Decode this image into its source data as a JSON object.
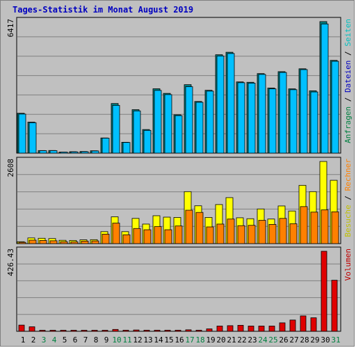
{
  "title": "Tages-Statistik im Monat August 2019",
  "chart_data": {
    "type": "bar",
    "title": "Tages-Statistik im Monat August 2019",
    "categories": [
      "1",
      "2",
      "3",
      "4",
      "5",
      "6",
      "7",
      "8",
      "9",
      "10",
      "11",
      "12",
      "13",
      "14",
      "15",
      "16",
      "17",
      "18",
      "19",
      "20",
      "21",
      "22",
      "23",
      "24",
      "25",
      "26",
      "27",
      "28",
      "29",
      "30",
      "31"
    ],
    "weekend_days": [
      "3",
      "4",
      "10",
      "11",
      "17",
      "18",
      "24",
      "25",
      "31"
    ],
    "panels": [
      {
        "name": "top",
        "ymax": 6417,
        "ymax_label": "6417",
        "right_label": [
          {
            "text": "Anfragen",
            "color": "#008040"
          },
          {
            "text": " / ",
            "color": "#000000"
          },
          {
            "text": "Dateien",
            "color": "#0000c0"
          },
          {
            "text": " / ",
            "color": "#000000"
          },
          {
            "text": "Seiten",
            "color": "#00c0c0"
          }
        ],
        "series": [
          {
            "name": "Anfragen",
            "color": "#008080",
            "values": [
              1945,
              1515,
              125,
              128,
              45,
              70,
              80,
              115,
              740,
              2420,
              530,
              2120,
              1150,
              3140,
              2915,
              1870,
              3340,
              2520,
              3065,
              4800,
              4920,
              3475,
              3455,
              3880,
              3175,
              3975,
              3135,
              4115,
              3040,
              6417,
              4525
            ]
          },
          {
            "name": "Dateien",
            "color": "#00c0ff",
            "values": [
              1905,
              1485,
              118,
              120,
              40,
              60,
              70,
              105,
              730,
              2330,
              520,
              2060,
              1110,
              3060,
              2855,
              1830,
              3240,
              2480,
              3025,
              4740,
              4860,
              3435,
              3415,
              3840,
              3135,
              3935,
              3095,
              4075,
              2985,
              6300,
              4480
            ]
          }
        ]
      },
      {
        "name": "middle",
        "ymax": 2608,
        "ymax_label": "2608",
        "right_label": [
          {
            "text": "Besuche",
            "color": "#c0c000"
          },
          {
            "text": " / ",
            "color": "#000000"
          },
          {
            "text": "Rechner",
            "color": "#ff8000"
          }
        ],
        "series": [
          {
            "name": "Besuche",
            "color": "#ffff00",
            "values": [
              60,
              180,
              170,
              160,
              105,
              100,
              120,
              125,
              380,
              850,
              380,
              800,
              620,
              885,
              840,
              830,
              1650,
              1200,
              830,
              1240,
              1460,
              820,
              790,
              1100,
              780,
              1195,
              1035,
              1850,
              1650,
              2608,
              2010
            ]
          },
          {
            "name": "Rechner",
            "color": "#ff8000",
            "values": [
              40,
              110,
              100,
              90,
              60,
              55,
              80,
              85,
              300,
              650,
              280,
              480,
              440,
              540,
              440,
              560,
              1060,
              990,
              530,
              620,
              780,
              570,
              580,
              740,
              610,
              800,
              630,
              1175,
              1000,
              1070,
              1010
            ]
          }
        ]
      },
      {
        "name": "bottom",
        "ymax": 426.43,
        "ymax_label": "426.43",
        "right_label": [
          {
            "text": "Volumen",
            "color": "#c00000"
          }
        ],
        "series": [
          {
            "name": "Volumen",
            "color": "#e00000",
            "values": [
              33,
              24,
              3,
              3,
              3,
              3,
              3,
              3,
              4,
              10,
              6,
              7,
              6,
              6,
              6,
              6,
              8,
              6,
              13,
              28,
              30,
              32,
              28,
              28,
              28,
              45,
              60,
              82,
              72,
              426.43,
              272
            ]
          }
        ]
      }
    ]
  }
}
